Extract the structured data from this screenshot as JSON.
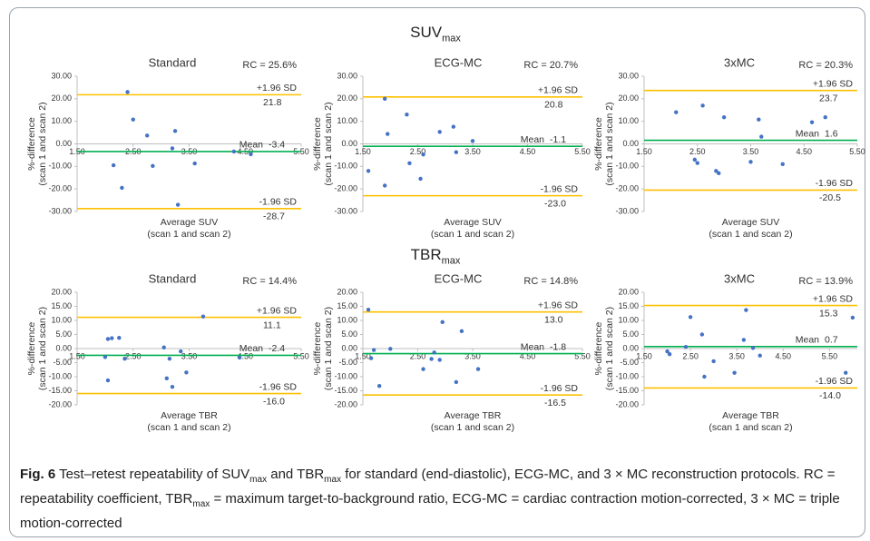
{
  "figure": {
    "headings": [
      {
        "main": "SUV",
        "sub": "max"
      },
      {
        "main": "TBR",
        "sub": "max"
      }
    ],
    "caption_label": "Fig. 6",
    "caption": [
      {
        "text": " Test–retest repeatability of SUV"
      },
      {
        "sub": "max"
      },
      {
        "text": " and TBR"
      },
      {
        "sub": "max"
      },
      {
        "text": " for standard (end-diastolic), ECG-MC, and 3 × MC reconstruction protocols. RC = repeatability coefficient, TBR"
      },
      {
        "sub": "max"
      },
      {
        "text": " = maximum target-to-background ratio, ECG-MC = cardiac contraction motion-corrected, 3 × MC = triple motion-corrected"
      }
    ]
  },
  "chart_data": [
    {
      "type": "scatter",
      "title": "Standard",
      "annotation": "RC = 25.6%",
      "xlabel": [
        "Average SUV",
        "(scan 1 and scan 2)"
      ],
      "ylabel": [
        "%-difference",
        "(scan 1 and scan 2)"
      ],
      "color": "#4472c4",
      "x": [
        2.15,
        2.3,
        2.4,
        2.5,
        2.75,
        2.85,
        3.2,
        3.25,
        3.3,
        3.6,
        4.3,
        4.6
      ],
      "values": [
        -9.5,
        -19.5,
        23,
        10.8,
        3.7,
        -9.8,
        -2.0,
        5.7,
        -27.0,
        -8.7,
        -3.4,
        -4.6
      ],
      "lines": [
        {
          "name": "+1.96 SD",
          "value": 21.8,
          "color": "#ffc000"
        },
        {
          "name": "Mean",
          "value": -3.4,
          "color": "#00b050"
        },
        {
          "name": "-1.96 SD",
          "value": -28.7,
          "color": "#ffc000"
        }
      ],
      "xlim": [
        1.5,
        5.5
      ],
      "ylim": [
        -30,
        30
      ],
      "xticks": [
        {
          "value": 1.5,
          "label": "1.50"
        },
        {
          "value": 2.5,
          "label": "2.50"
        },
        {
          "value": 3.5,
          "label": "3.50"
        },
        {
          "value": 4.5,
          "label": "4.50"
        },
        {
          "value": 5.5,
          "label": "5.50"
        }
      ],
      "yticks": [
        {
          "value": 30,
          "label": "30.00"
        },
        {
          "value": 20,
          "label": "20.00"
        },
        {
          "value": 10,
          "label": "10.00"
        },
        {
          "value": 0,
          "label": "0.00"
        },
        {
          "value": -10,
          "label": "-10.00"
        },
        {
          "value": -20,
          "label": "-20.00"
        },
        {
          "value": -30,
          "label": "-30.00"
        }
      ]
    },
    {
      "type": "scatter",
      "title": "ECG-MC",
      "annotation": "RC = 20.7%",
      "xlabel": [
        "Average SUV",
        "(scan 1 and scan 2)"
      ],
      "ylabel": [
        "%-difference",
        "(scan 1 and scan 2)"
      ],
      "color": "#4472c4",
      "x": [
        1.6,
        1.9,
        1.9,
        1.95,
        2.3,
        2.35,
        2.55,
        2.6,
        2.9,
        3.15,
        3.2,
        3.5
      ],
      "values": [
        -12,
        -18.5,
        20,
        4.4,
        13,
        -8.6,
        -15.5,
        -4.7,
        5.3,
        7.6,
        -3.7,
        1.3
      ],
      "lines": [
        {
          "name": "+1.96 SD",
          "value": 20.8,
          "color": "#ffc000"
        },
        {
          "name": "Mean",
          "value": -1.1,
          "color": "#00b050"
        },
        {
          "name": "-1.96 SD",
          "value": -23.0,
          "value_label": "-23.0",
          "color": "#ffc000"
        }
      ],
      "xlim": [
        1.5,
        5.5
      ],
      "ylim": [
        -30,
        30
      ],
      "xticks": [
        {
          "value": 1.5,
          "label": "1.50"
        },
        {
          "value": 2.5,
          "label": "2.50"
        },
        {
          "value": 3.5,
          "label": "3.50"
        },
        {
          "value": 4.5,
          "label": "4.50"
        },
        {
          "value": 5.5,
          "label": "5.50"
        }
      ],
      "yticks": [
        {
          "value": 30,
          "label": "30.00"
        },
        {
          "value": 20,
          "label": "20.00"
        },
        {
          "value": 10,
          "label": "10.00"
        },
        {
          "value": 0,
          "label": "0.00"
        },
        {
          "value": -10,
          "label": "-10.00"
        },
        {
          "value": -20,
          "label": "-20.00"
        },
        {
          "value": -30,
          "label": "-30.00"
        }
      ]
    },
    {
      "type": "scatter",
      "title": "3xMC",
      "annotation": "RC = 20.3%",
      "xlabel": [
        "Average SUV",
        "(scan 1 and scan 2)"
      ],
      "ylabel": [
        "%-difference",
        "(scan 1 and scan 2)"
      ],
      "color": "#4472c4",
      "x": [
        2.1,
        2.45,
        2.5,
        2.6,
        2.85,
        2.9,
        3.0,
        3.5,
        3.65,
        3.7,
        4.1,
        4.65,
        4.9
      ],
      "values": [
        14,
        -7,
        -8.5,
        17,
        -12,
        -13,
        11.8,
        -8,
        10.8,
        3.2,
        -9,
        9.6,
        11.8
      ],
      "lines": [
        {
          "name": "+1.96 SD",
          "value": 23.7,
          "color": "#ffc000"
        },
        {
          "name": "Mean",
          "value": 1.6,
          "color": "#00b050"
        },
        {
          "name": "-1.96 SD",
          "value": -20.5,
          "color": "#ffc000"
        }
      ],
      "xlim": [
        1.5,
        5.5
      ],
      "ylim": [
        -30,
        30
      ],
      "xticks": [
        {
          "value": 1.5,
          "label": "1.50"
        },
        {
          "value": 2.5,
          "label": "2.50"
        },
        {
          "value": 3.5,
          "label": "3.50"
        },
        {
          "value": 4.5,
          "label": "4.50"
        },
        {
          "value": 5.5,
          "label": "5.50"
        }
      ],
      "yticks": [
        {
          "value": 30,
          "label": "30.00"
        },
        {
          "value": 20,
          "label": "20.00"
        },
        {
          "value": 10,
          "label": "10.00"
        },
        {
          "value": 0,
          "label": "0.00"
        },
        {
          "value": -10,
          "label": "-10.00"
        },
        {
          "value": -20,
          "label": "-20.00"
        },
        {
          "value": -30,
          "label": "-30.00"
        }
      ]
    },
    {
      "type": "scatter",
      "title": "Standard",
      "annotation": "RC = 14.4%",
      "xlabel": [
        "Average TBR",
        "(scan 1 and scan 2)"
      ],
      "ylabel": [
        "%-difference",
        "(scan 1 and scan 2)"
      ],
      "color": "#4472c4",
      "x": [
        2.0,
        2.05,
        2.05,
        2.12,
        2.25,
        2.35,
        3.05,
        3.1,
        3.15,
        3.2,
        3.35,
        3.45,
        3.75,
        4.4
      ],
      "values": [
        -3.0,
        -11.3,
        3.4,
        3.7,
        3.8,
        -3.6,
        0.4,
        -10.6,
        -3.6,
        -13.6,
        -1.0,
        -8.5,
        11.4,
        -3.2
      ],
      "lines": [
        {
          "name": "+1.96 SD",
          "value": 11.1,
          "color": "#ffc000"
        },
        {
          "name": "Mean",
          "value": -2.4,
          "color": "#00b050"
        },
        {
          "name": "-1.96 SD",
          "value": -16.0,
          "value_label": "-16.0",
          "color": "#ffc000"
        }
      ],
      "xlim": [
        1.5,
        5.5
      ],
      "ylim": [
        -20,
        20
      ],
      "xticks": [
        {
          "value": 1.5,
          "label": "1.50"
        },
        {
          "value": 2.5,
          "label": "2.50"
        },
        {
          "value": 3.5,
          "label": "3.50"
        },
        {
          "value": 4.5,
          "label": "4.50"
        },
        {
          "value": 5.5,
          "label": "5.50"
        }
      ],
      "yticks": [
        {
          "value": 20,
          "label": "20.00"
        },
        {
          "value": 15,
          "label": "15.00"
        },
        {
          "value": 10,
          "label": "10.00"
        },
        {
          "value": 5,
          "label": "5.00"
        },
        {
          "value": 0,
          "label": "0.00"
        },
        {
          "value": -5,
          "label": "-5.00"
        },
        {
          "value": -10,
          "label": "-10.00"
        },
        {
          "value": -15,
          "label": "-15.00"
        },
        {
          "value": -20,
          "label": "-20.00"
        }
      ]
    },
    {
      "type": "scatter",
      "title": "ECG-MC",
      "annotation": "RC = 14.8%",
      "xlabel": [
        "Average TBR",
        "(scan 1 and scan 2)"
      ],
      "ylabel": [
        "%-difference",
        "(scan 1 and scan 2)"
      ],
      "color": "#4472c4",
      "x": [
        1.6,
        1.65,
        1.7,
        1.8,
        2.0,
        2.6,
        2.75,
        2.8,
        2.9,
        2.95,
        3.2,
        3.3,
        3.6
      ],
      "values": [
        13.8,
        -3.4,
        -0.5,
        -13.3,
        -0.1,
        -7.3,
        -3.7,
        -1.4,
        -4.0,
        9.4,
        -11.9,
        6.2,
        -7.3
      ],
      "lines": [
        {
          "name": "+1.96 SD",
          "value": 13.0,
          "value_label": "13.0",
          "color": "#ffc000"
        },
        {
          "name": "Mean",
          "value": -1.8,
          "color": "#00b050"
        },
        {
          "name": "-1.96 SD",
          "value": -16.5,
          "color": "#ffc000"
        }
      ],
      "xlim": [
        1.5,
        5.5
      ],
      "ylim": [
        -20,
        20
      ],
      "xticks": [
        {
          "value": 1.5,
          "label": "1.50"
        },
        {
          "value": 2.5,
          "label": "2.50"
        },
        {
          "value": 3.5,
          "label": "3.50"
        },
        {
          "value": 4.5,
          "label": "4.50"
        },
        {
          "value": 5.5,
          "label": "5.50"
        }
      ],
      "yticks": [
        {
          "value": 20,
          "label": "20.00"
        },
        {
          "value": 15,
          "label": "15.00"
        },
        {
          "value": 10,
          "label": "10.00"
        },
        {
          "value": 5,
          "label": "5.00"
        },
        {
          "value": 0,
          "label": "0.00"
        },
        {
          "value": -5,
          "label": "-5.00"
        },
        {
          "value": -10,
          "label": "-10.00"
        },
        {
          "value": -15,
          "label": "-15.00"
        },
        {
          "value": -20,
          "label": "-20.00"
        }
      ]
    },
    {
      "type": "scatter",
      "title": "3xMC",
      "annotation": "RC = 13.9%",
      "xlabel": [
        "Average TBR",
        "(scan 1 and scan 2)"
      ],
      "ylabel": [
        "%-difference",
        "(scan 1 and scan 2)"
      ],
      "color": "#4472c4",
      "x": [
        2.0,
        2.05,
        2.4,
        2.5,
        2.75,
        2.8,
        3.0,
        3.45,
        3.65,
        3.7,
        3.85,
        4.0,
        5.85,
        6.0
      ],
      "values": [
        -1,
        -2,
        0.6,
        11.2,
        5.0,
        -10,
        -4.5,
        -8.6,
        3.1,
        13.7,
        0.2,
        -2.5,
        -8.6,
        11
      ],
      "lines": [
        {
          "name": "+1.96 SD",
          "value": 15.3,
          "color": "#ffc000"
        },
        {
          "name": "Mean",
          "value": 0.7,
          "color": "#00b050"
        },
        {
          "name": "-1.96 SD",
          "value": -14.0,
          "value_label": "-14.0",
          "color": "#ffc000"
        }
      ],
      "xlim": [
        1.5,
        6.1
      ],
      "ylim": [
        -20,
        20
      ],
      "xticks": [
        {
          "value": 1.5,
          "label": "1.50"
        },
        {
          "value": 2.5,
          "label": "2.50"
        },
        {
          "value": 3.5,
          "label": "3.50"
        },
        {
          "value": 4.5,
          "label": "4.50"
        },
        {
          "value": 5.5,
          "label": "5.50"
        }
      ],
      "yticks": [
        {
          "value": 20,
          "label": "20.00"
        },
        {
          "value": 15,
          "label": "15.00"
        },
        {
          "value": 10,
          "label": "10.00"
        },
        {
          "value": 5,
          "label": "5.00"
        },
        {
          "value": 0,
          "label": "0.00"
        },
        {
          "value": -5,
          "label": "-5.00"
        },
        {
          "value": -10,
          "label": "-10.00"
        },
        {
          "value": -15,
          "label": "-15.00"
        },
        {
          "value": -20,
          "label": "-20.00"
        }
      ]
    }
  ]
}
